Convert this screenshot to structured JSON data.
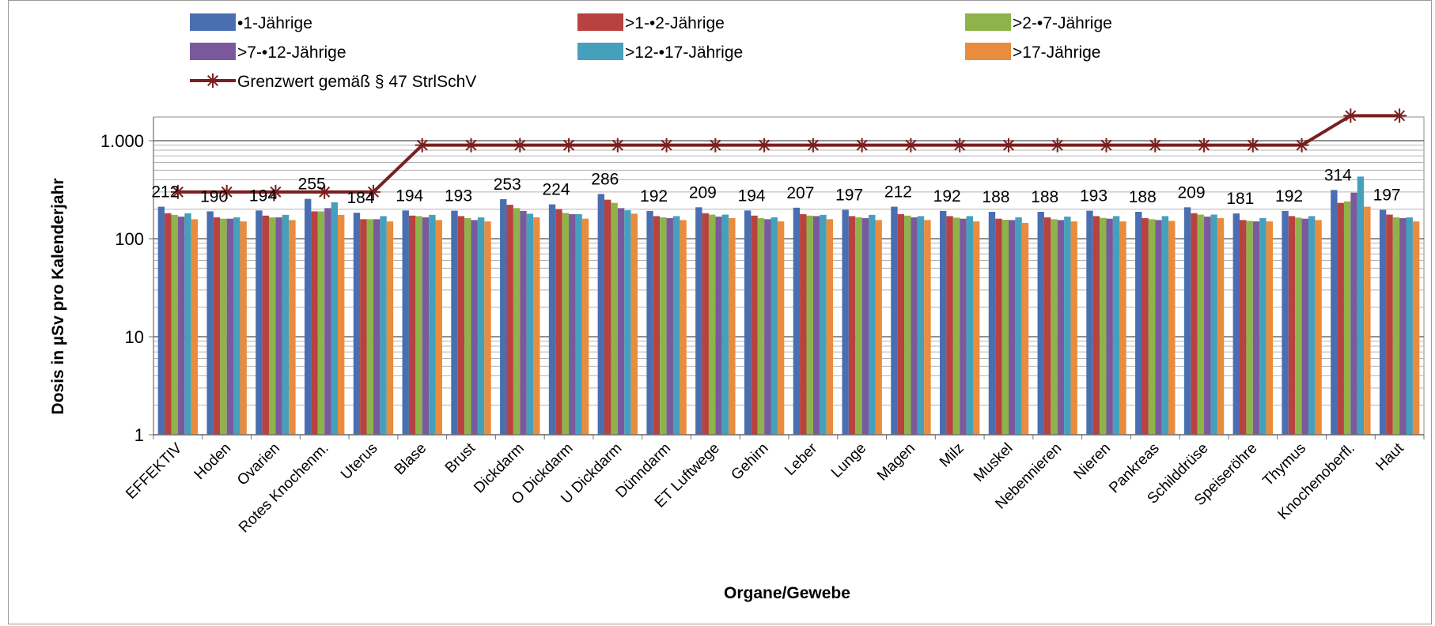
{
  "chart_data": {
    "type": "bar",
    "title": "",
    "xlabel": "Organe/Gewebe",
    "ylabel": "Dosis in µSv pro Kalenderjahr",
    "yscale": "log",
    "ylim": [
      1,
      2000
    ],
    "yticks": [
      1,
      10,
      100,
      1000
    ],
    "ytick_labels": [
      "1",
      "10",
      "100",
      "1.000"
    ],
    "grid": "horizontal minor and major gridlines",
    "legend_position": "top",
    "categories": [
      "EFFEKTIV",
      "Hoden",
      "Ovarien",
      "Rotes Knochenm.",
      "Uterus",
      "Blase",
      "Brust",
      "Dickdarm",
      "O Dickdarm",
      "U Dickdarm",
      "Dünndarm",
      "ET Luftwege",
      "Gehirn",
      "Leber",
      "Lunge",
      "Magen",
      "Milz",
      "Muskel",
      "Nebennieren",
      "Nieren",
      "Pankreas",
      "Schilddrüse",
      "Speiseröhre",
      "Thymus",
      "Knochenoberfl.",
      "Haut"
    ],
    "data_labels": [
      "212",
      "190",
      "194",
      "255",
      "184",
      "194",
      "193",
      "253",
      "224",
      "286",
      "192",
      "209",
      "194",
      "207",
      "197",
      "212",
      "192",
      "188",
      "188",
      "193",
      "188",
      "209",
      "181",
      "192",
      "314",
      "197"
    ],
    "series": [
      {
        "name": "•1-Jährige",
        "color": "#4a6fb0",
        "values": [
          212,
          190,
          194,
          255,
          184,
          194,
          193,
          253,
          224,
          286,
          192,
          209,
          194,
          207,
          197,
          212,
          192,
          188,
          188,
          193,
          188,
          209,
          181,
          192,
          314,
          197
        ]
      },
      {
        "name": ">1-•2-Jährige",
        "color": "#b8423f",
        "values": [
          182,
          165,
          172,
          190,
          158,
          172,
          170,
          222,
          200,
          250,
          170,
          182,
          172,
          178,
          170,
          178,
          170,
          160,
          165,
          170,
          162,
          182,
          155,
          170,
          232,
          176
        ]
      },
      {
        "name": ">2-•7-Jährige",
        "color": "#8eb34b",
        "values": [
          175,
          160,
          165,
          190,
          158,
          170,
          162,
          205,
          183,
          232,
          165,
          176,
          162,
          172,
          165,
          172,
          164,
          156,
          158,
          163,
          158,
          176,
          152,
          164,
          240,
          165
        ]
      },
      {
        "name": ">7-•12-Jährige",
        "color": "#7a5a9c",
        "values": [
          168,
          160,
          165,
          205,
          158,
          165,
          155,
          192,
          178,
          205,
          162,
          168,
          158,
          170,
          162,
          165,
          160,
          155,
          155,
          160,
          155,
          168,
          150,
          160,
          295,
          162
        ]
      },
      {
        "name": ">12-•17-Jährige",
        "color": "#45a0bc",
        "values": [
          182,
          165,
          175,
          235,
          170,
          175,
          165,
          180,
          178,
          195,
          170,
          176,
          165,
          175,
          175,
          170,
          170,
          165,
          168,
          170,
          170,
          176,
          162,
          170,
          430,
          165
        ]
      },
      {
        "name": ">17-Jährige",
        "color": "#e98c3e",
        "values": [
          158,
          150,
          155,
          175,
          150,
          155,
          150,
          165,
          160,
          180,
          155,
          162,
          150,
          158,
          155,
          155,
          150,
          145,
          150,
          150,
          152,
          162,
          150,
          155,
          212,
          150
        ]
      }
    ],
    "limit_line": {
      "name": "Grenzwert gemäß § 47 StrlSchV",
      "color": "#7a1f1f",
      "values": [
        300,
        300,
        300,
        300,
        300,
        900,
        900,
        900,
        900,
        900,
        900,
        900,
        900,
        900,
        900,
        900,
        900,
        900,
        900,
        900,
        900,
        900,
        900,
        900,
        1800,
        1800
      ]
    }
  }
}
